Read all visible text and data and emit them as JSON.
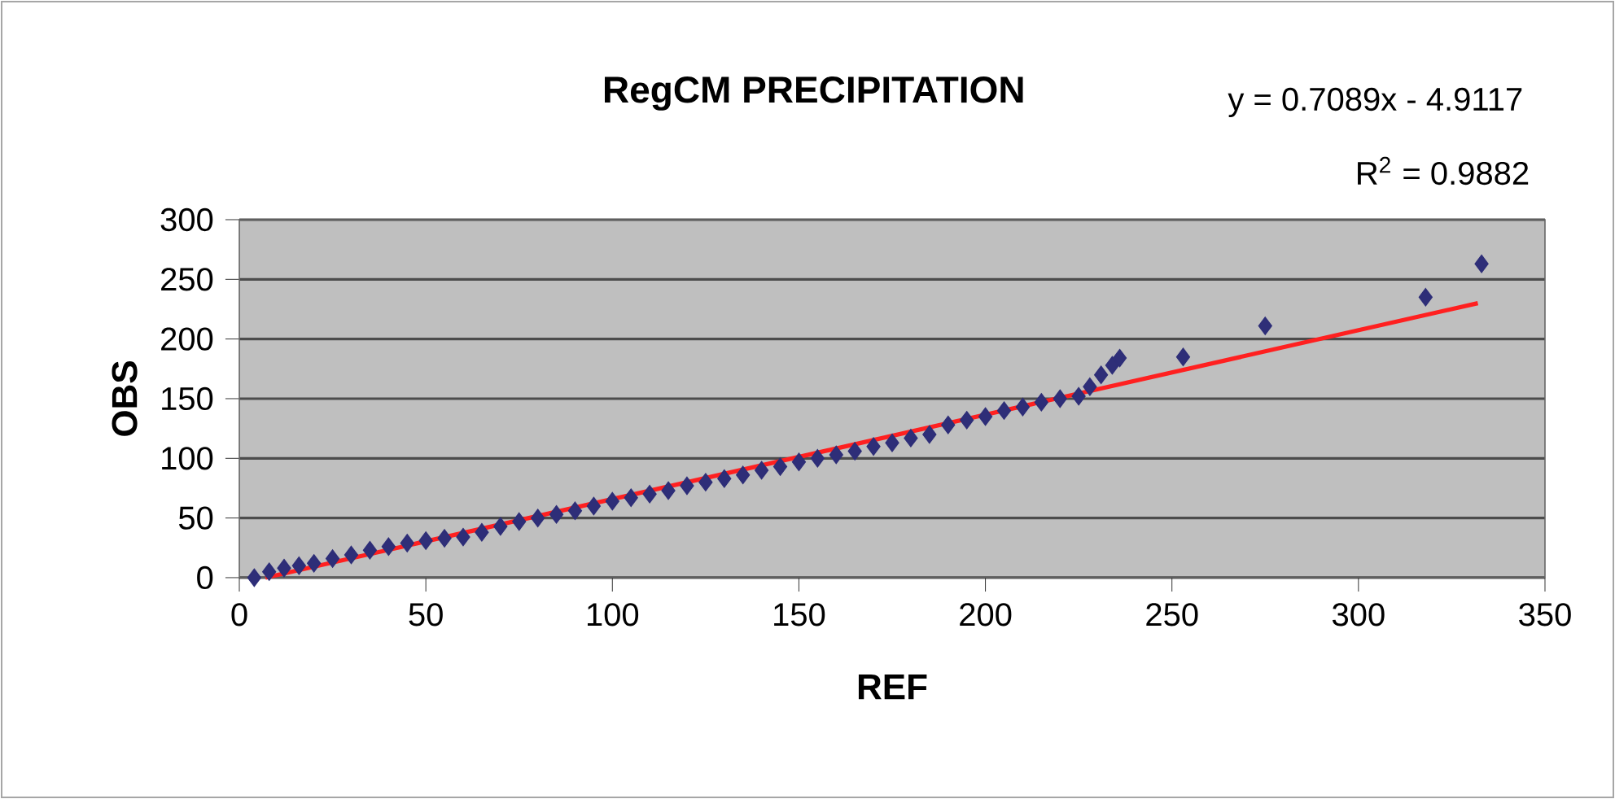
{
  "chart_data": {
    "type": "scatter",
    "title": "RegCM PRECIPITATION",
    "xlabel": "REF",
    "ylabel": "OBS",
    "annotations": [
      "y = 0.7089x - 4.9117",
      "R$^{2}$ = 0.9882"
    ],
    "xlim": [
      0,
      350
    ],
    "xticks": [
      0,
      50,
      100,
      150,
      200,
      250,
      300,
      350
    ],
    "ylim": [
      0,
      300
    ],
    "yticks": [
      0,
      50,
      100,
      150,
      200,
      250,
      300
    ],
    "grid": "y",
    "series": [
      {
        "marker": "diamond",
        "color": "#2e2e78",
        "x": [
          4,
          8,
          12,
          16,
          20,
          25,
          30,
          35,
          40,
          45,
          50,
          55,
          60,
          65,
          70,
          75,
          80,
          85,
          90,
          95,
          100,
          105,
          110,
          115,
          120,
          125,
          130,
          135,
          140,
          145,
          150,
          155,
          160,
          165,
          170,
          175,
          180,
          185,
          190,
          195,
          200,
          205,
          210,
          215,
          220,
          225,
          228,
          231,
          234,
          236,
          253,
          275,
          318,
          333
        ],
        "values": [
          0,
          5,
          8,
          10,
          12,
          16,
          19,
          23,
          26,
          29,
          31,
          33,
          34,
          38,
          43,
          47,
          50,
          53,
          56,
          60,
          64,
          67,
          70,
          73,
          77,
          80,
          83,
          86,
          90,
          93,
          97,
          100,
          103,
          106,
          110,
          113,
          117,
          120,
          128,
          132,
          135,
          140,
          143,
          147,
          150,
          152,
          160,
          170,
          178,
          184,
          185,
          211,
          235,
          263
        ]
      },
      {
        "type": "line",
        "marker": "none",
        "color": "#ff2020",
        "x": [
          7,
          332
        ],
        "values": [
          0,
          230
        ]
      }
    ]
  }
}
